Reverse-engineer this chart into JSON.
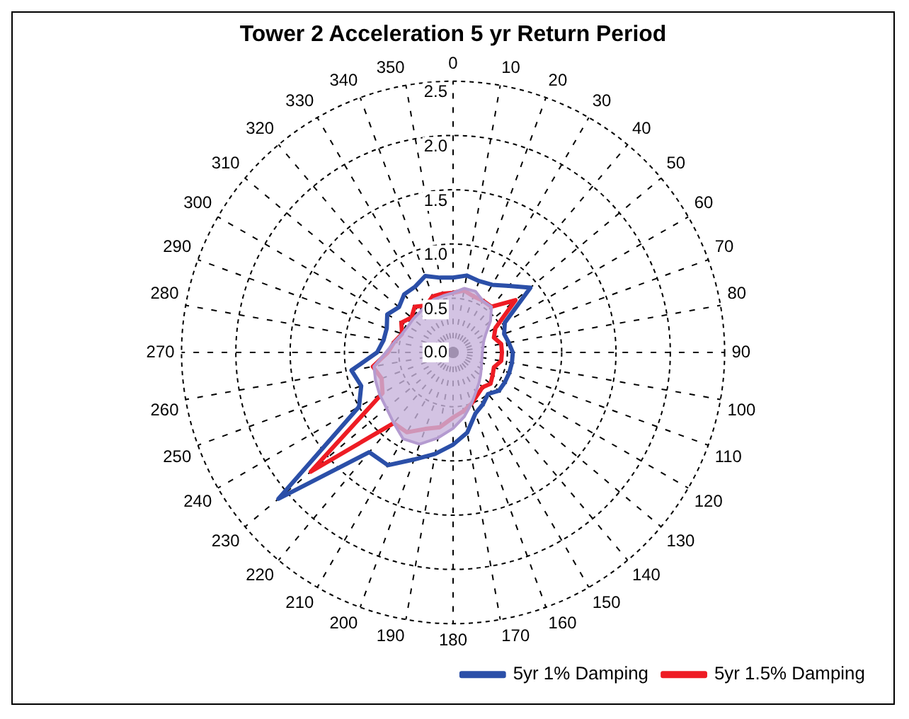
{
  "chart_data": {
    "type": "radar",
    "title": "Tower 2 Acceleration 5 yr Return Period",
    "categories": [
      "0",
      "10",
      "20",
      "30",
      "40",
      "50",
      "60",
      "70",
      "80",
      "90",
      "100",
      "110",
      "120",
      "130",
      "140",
      "150",
      "160",
      "170",
      "180",
      "190",
      "200",
      "210",
      "220",
      "230",
      "240",
      "250",
      "260",
      "270",
      "280",
      "290",
      "300",
      "310",
      "320",
      "330",
      "340",
      "350"
    ],
    "ylim": [
      0,
      2.5
    ],
    "yticks": [
      {
        "value": 0,
        "label": "0.0"
      },
      {
        "value": 0.5,
        "label": "0.5"
      },
      {
        "value": 1,
        "label": "1.0"
      },
      {
        "value": 1.5,
        "label": "1.5"
      },
      {
        "value": 2,
        "label": "2.0"
      },
      {
        "value": 2.5,
        "label": "2.5"
      }
    ],
    "grid": true,
    "legend": "bottom right",
    "line_style": "solid",
    "marker": "none",
    "series": [
      {
        "type": "area",
        "color": "#c8b4dc",
        "values": [
          0.55,
          0.6,
          0.6,
          0.55,
          0.55,
          0.45,
          0.35,
          0.3,
          0.28,
          0.27,
          0.27,
          0.28,
          0.3,
          0.33,
          0.37,
          0.42,
          0.5,
          0.6,
          0.7,
          0.8,
          0.9,
          0.92,
          0.85,
          0.8,
          0.78,
          0.76,
          0.74,
          0.62,
          0.55,
          0.5,
          0.48,
          0.48,
          0.48,
          0.5,
          0.52,
          0.53
        ]
      },
      {
        "name": "5yr 1% Damping",
        "color": "#2b4fa8",
        "values": [
          0.69,
          0.72,
          0.7,
          0.72,
          0.8,
          0.93,
          0.55,
          0.5,
          0.52,
          0.55,
          0.55,
          0.55,
          0.55,
          0.55,
          0.5,
          0.55,
          0.6,
          0.75,
          0.85,
          0.95,
          1.05,
          1.2,
          1.2,
          2.1,
          1.0,
          0.9,
          0.95,
          0.7,
          0.65,
          0.65,
          0.7,
          0.65,
          0.7,
          0.7,
          0.75,
          0.7
        ]
      },
      {
        "name": "5yr 1.5% Damping",
        "color": "#ee1c24",
        "values": [
          0.55,
          0.58,
          0.55,
          0.55,
          0.55,
          0.75,
          0.45,
          0.4,
          0.45,
          0.45,
          0.45,
          0.4,
          0.42,
          0.45,
          0.42,
          0.45,
          0.5,
          0.55,
          0.6,
          0.7,
          0.75,
          0.85,
          0.85,
          1.71,
          0.75,
          0.7,
          0.75,
          0.6,
          0.55,
          0.5,
          0.55,
          0.5,
          0.55,
          0.5,
          0.55,
          0.55
        ]
      }
    ]
  }
}
